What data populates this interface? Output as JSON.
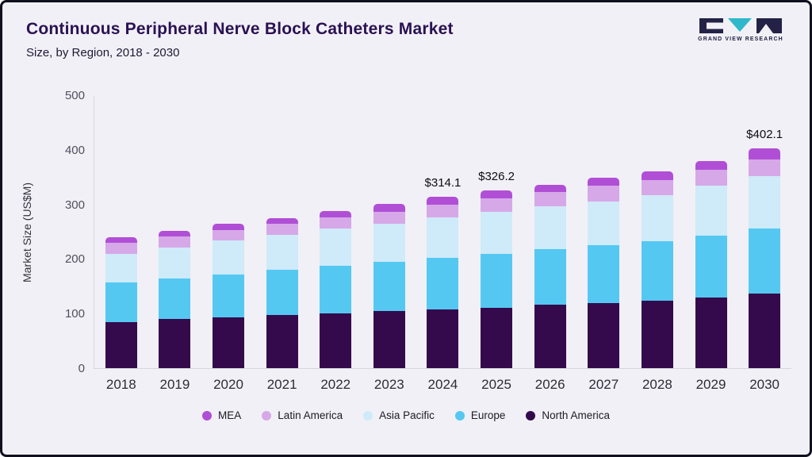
{
  "header": {
    "title": "Continuous Peripheral Nerve Block Catheters Market",
    "subtitle": "Size, by Region, 2018 - 2030"
  },
  "logo": {
    "text": "GRAND VIEW RESEARCH"
  },
  "chart_data": {
    "type": "bar",
    "stacked": true,
    "title": "Continuous Peripheral Nerve Block Catheters Market Size, by Region, 2018 - 2030",
    "xlabel": "",
    "ylabel": "Market Size (US$M)",
    "ylim": [
      0,
      500
    ],
    "yticks": [
      0,
      100,
      200,
      300,
      400,
      500
    ],
    "grid": false,
    "legend_position": "bottom",
    "categories": [
      "2018",
      "2019",
      "2020",
      "2021",
      "2022",
      "2023",
      "2024",
      "2025",
      "2026",
      "2027",
      "2028",
      "2029",
      "2030"
    ],
    "series": [
      {
        "name": "North America",
        "color": "#340a4d",
        "values": [
          85,
          90,
          93,
          97,
          101,
          104,
          108,
          111,
          116,
          119,
          124,
          130,
          136
        ]
      },
      {
        "name": "Europe",
        "color": "#55c8f2",
        "values": [
          72,
          74,
          79,
          83,
          87,
          91,
          94,
          99,
          102,
          106,
          108,
          113,
          120
        ]
      },
      {
        "name": "Asia Pacific",
        "color": "#cfeaf8",
        "values": [
          53,
          57,
          62,
          65,
          68,
          70,
          74,
          76,
          79,
          81,
          85,
          91,
          96
        ]
      },
      {
        "name": "Latin America",
        "color": "#d6a8e8",
        "values": [
          19,
          20,
          19,
          19,
          20,
          22,
          24,
          25,
          25,
          28,
          28,
          29,
          31
        ]
      },
      {
        "name": "MEA",
        "color": "#b04fd6",
        "values": [
          11,
          11,
          12,
          11.5,
          12,
          13.5,
          14.1,
          15.2,
          14,
          15.5,
          15.5,
          17,
          19.1
        ]
      }
    ],
    "legend_order": [
      "MEA",
      "Latin America",
      "Asia Pacific",
      "Europe",
      "North America"
    ],
    "totals": [
      240,
      252,
      265,
      275.5,
      288,
      300.5,
      314.1,
      326.2,
      336,
      349.5,
      360.5,
      380,
      402.1
    ],
    "annotations": [
      {
        "category": "2024",
        "text": "$314.1"
      },
      {
        "category": "2025",
        "text": "$326.2"
      },
      {
        "category": "2030",
        "text": "$402.1"
      }
    ]
  },
  "colors": {
    "background": "#f1f0f6",
    "frame_border": "#10101e",
    "title_text": "#2a1153",
    "logo_dark": "#232246",
    "logo_teal": "#2eb8cc"
  }
}
